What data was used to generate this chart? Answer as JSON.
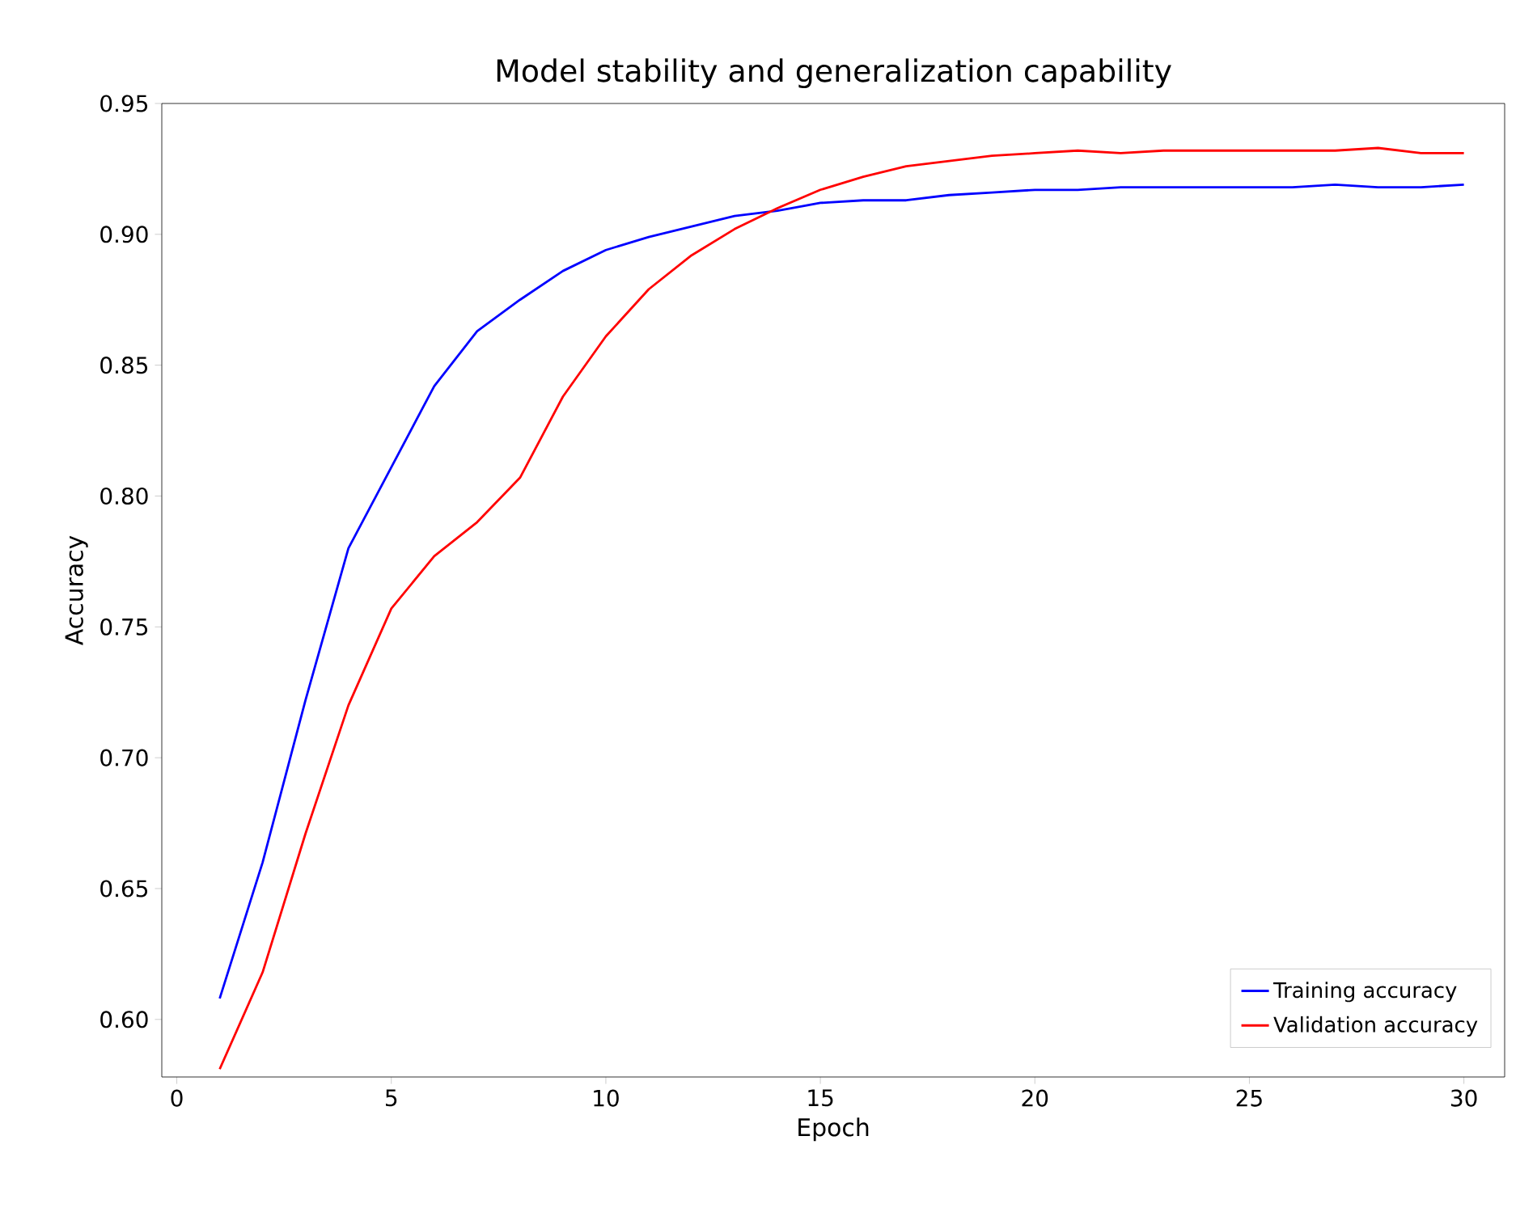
{
  "chart_data": {
    "type": "line",
    "title": "Model stability and generalization capability",
    "xlabel": "Epoch",
    "ylabel": "Accuracy",
    "x": [
      1,
      2,
      3,
      4,
      5,
      6,
      7,
      8,
      9,
      10,
      11,
      12,
      13,
      14,
      15,
      16,
      17,
      18,
      19,
      20,
      21,
      22,
      23,
      24,
      25,
      26,
      27,
      28,
      29,
      30
    ],
    "series": [
      {
        "name": "Training accuracy",
        "color": "#0000ff",
        "values": [
          0.608,
          0.66,
          0.722,
          0.78,
          0.811,
          0.842,
          0.863,
          0.875,
          0.886,
          0.894,
          0.899,
          0.903,
          0.907,
          0.909,
          0.912,
          0.913,
          0.913,
          0.915,
          0.916,
          0.917,
          0.917,
          0.918,
          0.918,
          0.918,
          0.918,
          0.918,
          0.919,
          0.918,
          0.918,
          0.919
        ]
      },
      {
        "name": "Validation accuracy",
        "color": "#ff0000",
        "values": [
          0.581,
          0.618,
          0.671,
          0.72,
          0.757,
          0.777,
          0.79,
          0.807,
          0.838,
          0.861,
          0.879,
          0.892,
          0.902,
          0.91,
          0.917,
          0.922,
          0.926,
          0.928,
          0.93,
          0.931,
          0.932,
          0.931,
          0.932,
          0.932,
          0.932,
          0.932,
          0.932,
          0.933,
          0.931,
          0.931
        ]
      }
    ],
    "xlim": [
      -0.35,
      30.95
    ],
    "ylim": [
      0.578,
      0.95
    ],
    "xticks": [
      0,
      5,
      10,
      15,
      20,
      25,
      30
    ],
    "yticks": [
      {
        "value": 0.6,
        "label": "0.60"
      },
      {
        "value": 0.65,
        "label": "0.65"
      },
      {
        "value": 0.7,
        "label": "0.70"
      },
      {
        "value": 0.75,
        "label": "0.75"
      },
      {
        "value": 0.8,
        "label": "0.80"
      },
      {
        "value": 0.85,
        "label": "0.85"
      },
      {
        "value": 0.9,
        "label": "0.90"
      },
      {
        "value": 0.95,
        "label": "0.95"
      }
    ],
    "legend": "bottom right",
    "grid": false,
    "marker": "none",
    "line_style": "solid"
  }
}
